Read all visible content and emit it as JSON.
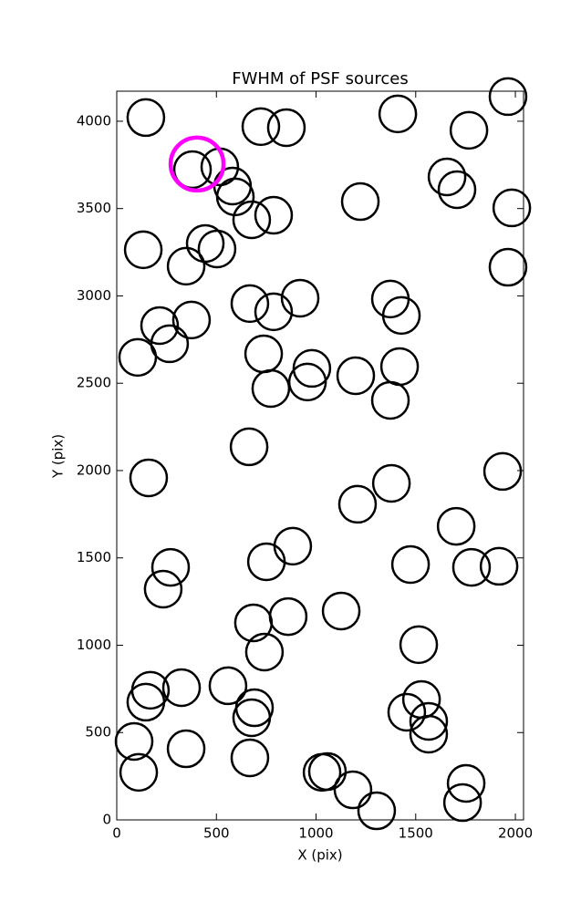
{
  "chart_data": {
    "type": "scatter",
    "title": "FWHM of PSF sources",
    "xlabel": "X (pix)",
    "ylabel": "Y (pix)",
    "xlim": [
      0,
      2041
    ],
    "ylim": [
      0,
      4172
    ],
    "xticks": [
      0,
      500,
      1000,
      1500,
      2000
    ],
    "yticks": [
      0,
      500,
      1000,
      1500,
      2000,
      2500,
      3000,
      3500,
      4000
    ],
    "series": [
      {
        "color": "#000000",
        "x": [
          146,
          380,
          517,
          581,
          595,
          677,
          787,
          723,
          851,
          1410,
          1767,
          1657,
          1707,
          1222,
          1963,
          1982,
          1963,
          133,
          444,
          503,
          348,
          668,
          787,
          920,
          1373,
          1428,
          215,
          375,
          265,
          105,
          737,
          979,
          957,
          773,
          1199,
          1419,
          1373,
          664,
          160,
          1208,
          1378,
          1936,
          1703,
          270,
          233,
          751,
          883,
          1474,
          1780,
          1918,
          686,
          860,
          1126,
          741,
          1515,
          169,
          146,
          325,
          558,
          691,
          677,
          87,
          110,
          348,
          668,
          1030,
          1057,
          1185,
          1304,
          1455,
          1529,
          1565,
          1565,
          1753,
          1735
        ],
        "y": [
          4021,
          3723,
          3739,
          3629,
          3567,
          3436,
          3462,
          3969,
          3963,
          4042,
          3948,
          3681,
          3608,
          3540,
          4141,
          3504,
          3164,
          3264,
          3300,
          3269,
          3170,
          2956,
          2909,
          2987,
          2982,
          2888,
          2830,
          2862,
          2726,
          2648,
          2668,
          2585,
          2507,
          2470,
          2543,
          2595,
          2402,
          2136,
          1958,
          1807,
          1927,
          1995,
          1681,
          1446,
          1321,
          1478,
          1567,
          1462,
          1446,
          1452,
          1128,
          1164,
          1196,
          961,
          1003,
          742,
          674,
          757,
          768,
          642,
          585,
          449,
          272,
          407,
          355,
          272,
          277,
          172,
          52,
          616,
          689,
          564,
          491,
          209,
          99
        ]
      },
      {
        "color": "#ff00ff",
        "x": [
          403
        ],
        "y": [
          3755
        ]
      }
    ]
  }
}
